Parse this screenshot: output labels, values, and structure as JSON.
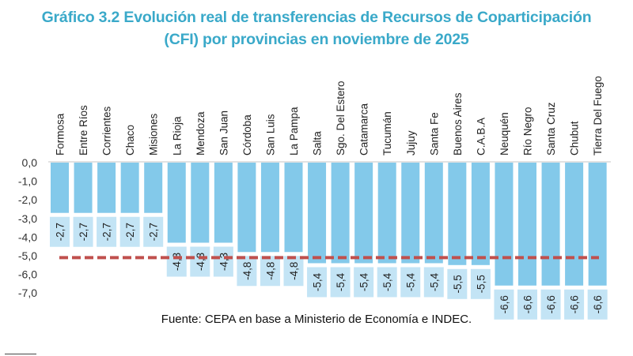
{
  "title_line1": "Gráfico 3.2 Evolución real de transferencias de Recursos de Coparticipación",
  "title_line2": "(CFI) por provincias en noviembre de 2025",
  "source": "Fuente: CEPA en base a Ministerio de Economía e INDEC.",
  "colors": {
    "title": "#3aa9c9",
    "bar": "#83c9ea",
    "label_box": "#c3e4f5",
    "reference_line": "#c0504d",
    "axis": "#d9d9d9"
  },
  "chart_data": {
    "type": "bar",
    "title": "Gráfico 3.2 Evolución real de transferencias de Recursos de Coparticipación (CFI) por provincias en noviembre de 2025",
    "xlabel": "",
    "ylabel": "",
    "ylim": [
      -7.0,
      0.0
    ],
    "yticks": [
      "0,0",
      "-1,0",
      "-2,0",
      "-3,0",
      "-4,0",
      "-5,0",
      "-6,0",
      "-7,0"
    ],
    "ytick_values": [
      0,
      -1,
      -2,
      -3,
      -4,
      -5,
      -6,
      -7
    ],
    "categories": [
      "Formosa",
      "Entre Ríos",
      "Corrientes",
      "Chaco",
      "Misiones",
      "La Rioja",
      "Mendoza",
      "San Juan",
      "Córdoba",
      "San Luis",
      "La Pampa",
      "Salta",
      "Sgo. Del Estero",
      "Catamarca",
      "Tucumán",
      "Jujuy",
      "Santa Fe",
      "Buenos Aires",
      "C.A.B.A",
      "Neuquén",
      "Río Negro",
      "Santa Cruz",
      "Chubut",
      "Tierra Del Fuego"
    ],
    "values": [
      -2.7,
      -2.7,
      -2.7,
      -2.7,
      -2.7,
      -4.3,
      -4.3,
      -4.3,
      -4.8,
      -4.8,
      -4.8,
      -5.4,
      -5.4,
      -5.4,
      -5.4,
      -5.4,
      -5.4,
      -5.5,
      -5.5,
      -6.6,
      -6.6,
      -6.6,
      -6.6,
      -6.6
    ],
    "data_labels": [
      "-2,7",
      "-2,7",
      "-2,7",
      "-2,7",
      "-2,7",
      "-4,3",
      "-4,3",
      "-4,3",
      "-4,8",
      "-4,8",
      "-4,8",
      "-5,4",
      "-5,4",
      "-5,4",
      "-5,4",
      "-5,4",
      "-5,4",
      "-5,5",
      "-5,5",
      "-6,6",
      "-6,6",
      "-6,6",
      "-6,6",
      "-6,6"
    ],
    "reference_line": {
      "style": "dashed",
      "value": -5.1
    },
    "grid": false,
    "legend": "none"
  }
}
